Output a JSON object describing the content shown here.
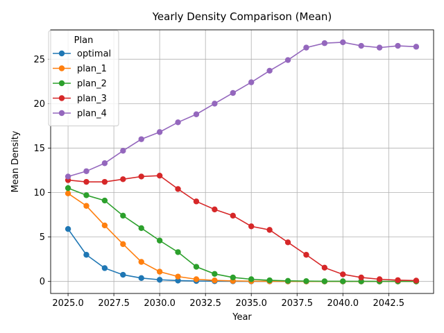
{
  "chart_data": {
    "type": "line",
    "title": "Yearly Density Comparison (Mean)",
    "xlabel": "Year",
    "ylabel": "Mean Density",
    "x": [
      2025,
      2026,
      2027,
      2028,
      2029,
      2030,
      2031,
      2032,
      2033,
      2034,
      2035,
      2036,
      2037,
      2038,
      2039,
      2040,
      2041,
      2042,
      2043,
      2044
    ],
    "xlim": [
      2024.05,
      2044.95
    ],
    "ylim": [
      -1.35,
      28.3
    ],
    "xticks": [
      2025.0,
      2027.5,
      2030.0,
      2032.5,
      2035.0,
      2037.5,
      2040.0,
      2042.5
    ],
    "xtick_labels": [
      "2025.0",
      "2027.5",
      "2030.0",
      "2032.5",
      "2035.0",
      "2037.5",
      "2040.0",
      "2042.5"
    ],
    "yticks": [
      0,
      5,
      10,
      15,
      20,
      25
    ],
    "ytick_labels": [
      "0",
      "5",
      "10",
      "15",
      "20",
      "25"
    ],
    "grid": true,
    "legend": {
      "title": "Plan",
      "placement": "upper-left"
    },
    "series": [
      {
        "name": "optimal",
        "color": "#1f77b4",
        "values": [
          5.9,
          3.0,
          1.5,
          0.75,
          0.38,
          0.19,
          0.1,
          0.05,
          0.03,
          0.02,
          0.01,
          0.01,
          0.0,
          0.0,
          0.0,
          0.0,
          0.0,
          0.0,
          0.0,
          0.0
        ]
      },
      {
        "name": "plan_1",
        "color": "#ff7f0e",
        "values": [
          9.9,
          8.5,
          6.3,
          4.2,
          2.2,
          1.1,
          0.55,
          0.25,
          0.12,
          0.06,
          0.03,
          0.02,
          0.01,
          0.0,
          0.0,
          0.0,
          0.0,
          0.0,
          0.0,
          0.0
        ]
      },
      {
        "name": "plan_2",
        "color": "#2ca02c",
        "values": [
          10.5,
          9.7,
          9.1,
          7.4,
          6.0,
          4.6,
          3.3,
          1.65,
          0.85,
          0.45,
          0.25,
          0.13,
          0.07,
          0.04,
          0.02,
          0.02,
          0.01,
          0.01,
          0.01,
          0.01
        ]
      },
      {
        "name": "plan_3",
        "color": "#d62728",
        "values": [
          11.4,
          11.2,
          11.2,
          11.5,
          11.8,
          11.9,
          10.4,
          9.0,
          8.1,
          7.4,
          6.2,
          5.8,
          4.4,
          3.0,
          1.55,
          0.8,
          0.45,
          0.25,
          0.15,
          0.1
        ]
      },
      {
        "name": "plan_4",
        "color": "#9467bd",
        "values": [
          11.8,
          12.4,
          13.3,
          14.7,
          16.0,
          16.8,
          17.9,
          18.8,
          20.0,
          21.2,
          22.4,
          23.7,
          24.9,
          26.3,
          26.8,
          26.9,
          26.5,
          26.3,
          26.5,
          26.4
        ]
      }
    ]
  }
}
